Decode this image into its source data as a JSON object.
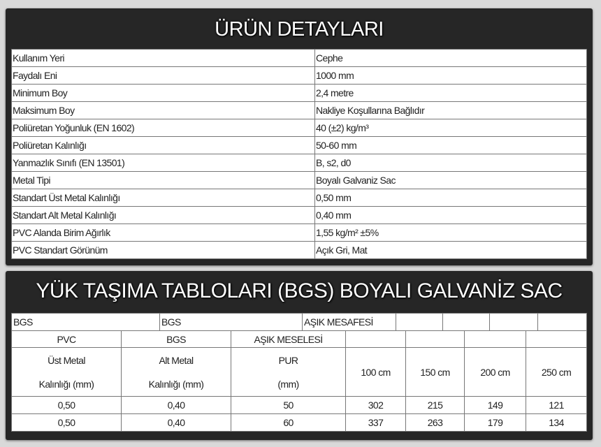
{
  "details": {
    "title": "ÜRÜN DETAYLARI",
    "rows": [
      {
        "label": "Kullanım Yeri",
        "value": "Cephe"
      },
      {
        "label": "Faydalı Eni",
        "value": "1000 mm"
      },
      {
        "label": "Minimum Boy",
        "value": "2,4 metre"
      },
      {
        "label": "Maksimum Boy",
        "value": "Nakliye Koşullarına Bağlıdır"
      },
      {
        "label": "Poliüretan Yoğunluk (EN 1602)",
        "value": "40 (±2) kg/m³"
      },
      {
        "label": "Poliüretan Kalınlığı",
        "value": "50-60 mm"
      },
      {
        "label": "Yanmazlık Sınıfı (EN 13501)",
        "value": "B, s2, d0"
      },
      {
        "label": "Metal Tipi",
        "value": "Boyalı Galvaniz Sac"
      },
      {
        "label": "Standart Üst Metal Kalınlığı",
        "value": "0,50 mm"
      },
      {
        "label": "Standart Alt Metal Kalınlığı",
        "value": "0,40 mm"
      },
      {
        "label": "PVC Alanda Birim Ağırlık",
        "value": "1,55 kg/m²  ±5%"
      },
      {
        "label": "PVC Standart Görünüm",
        "value": "Açık Gri, Mat"
      }
    ]
  },
  "load": {
    "title": "YÜK TAŞIMA TABLOLARI (BGS) BOYALI GALVANİZ SAC",
    "top_row": [
      "BGS",
      "BGS",
      "AŞIK MESAFESİ",
      "",
      "",
      "",
      ""
    ],
    "header_row1": [
      "PVC",
      "BGS",
      "AŞIK MESELESİ"
    ],
    "header_row2a": [
      "Üst Metal",
      "Alt Metal",
      "PUR"
    ],
    "header_row2b": [
      "Kalınlığı (mm)",
      "Kalınlığı (mm)",
      "(mm)"
    ],
    "spans": [
      "100 cm",
      "150 cm",
      "200 cm",
      "250 cm"
    ],
    "rows": [
      [
        "0,50",
        "0,40",
        "50",
        "302",
        "215",
        "149",
        "121"
      ],
      [
        "0,50",
        "0,40",
        "60",
        "337",
        "263",
        "179",
        "134"
      ]
    ]
  }
}
